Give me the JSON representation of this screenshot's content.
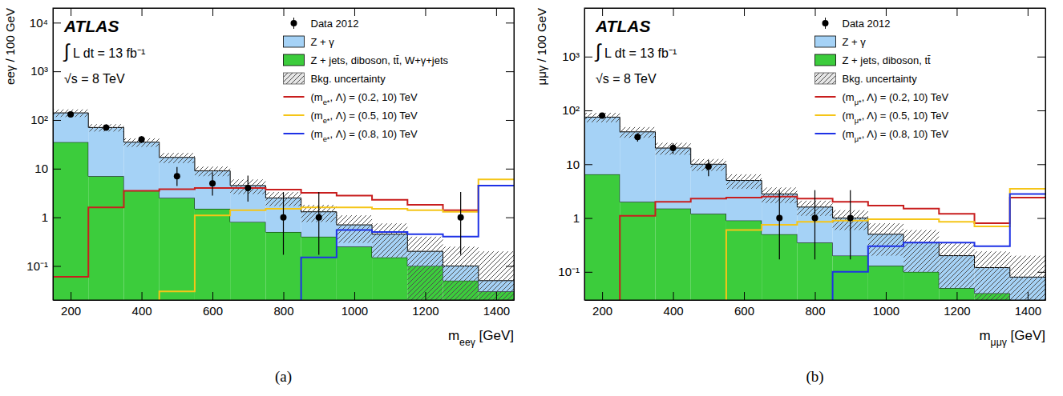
{
  "chart_data": [
    {
      "type": "histogram",
      "title": "(a)",
      "xlabel": "meeγ [GeV]",
      "ylabel": "eeγ / 100 GeV",
      "annotations": [
        "ATLAS",
        "∫ L dt = 13 fb⁻¹",
        "√s = 8 TeV"
      ],
      "bins": [
        150,
        250,
        350,
        450,
        550,
        650,
        750,
        850,
        950,
        1050,
        1150,
        1250,
        1350,
        1450
      ],
      "xlim": [
        150,
        1450
      ],
      "xticks": [
        200,
        400,
        600,
        800,
        1000,
        1200,
        1400
      ],
      "ylim": [
        0.02,
        20000
      ],
      "yticks": [
        {
          "value": 0.1,
          "label": "10⁻¹"
        },
        1,
        10,
        {
          "value": 100,
          "label": "10²"
        },
        {
          "value": 1000,
          "label": "10³"
        },
        {
          "value": 10000,
          "label": "10⁴"
        }
      ],
      "log": "y",
      "stacked": true,
      "legend": "upper right",
      "series": [
        {
          "name": "Data 2012",
          "type": "errorbar",
          "marker": "circle",
          "color": "#000000",
          "values": [
            130,
            70,
            40,
            7,
            5,
            4,
            1,
            1,
            null,
            null,
            null,
            1,
            null
          ],
          "errors_low": [
            11,
            8.4,
            6.3,
            2.6,
            2.2,
            1.9,
            0.83,
            0.83,
            null,
            null,
            null,
            0.83,
            null
          ],
          "errors_high": [
            11,
            8.4,
            6.3,
            3.8,
            3.4,
            3.2,
            2.3,
            2.3,
            null,
            null,
            null,
            2.3,
            null
          ]
        },
        {
          "name": "Z + γ",
          "type": "bar",
          "color": "#a5d2f6",
          "values": [
            105,
            63,
            31.5,
            14.5,
            7.5,
            3.7,
            2.0,
            0.9,
            0.45,
            0.3,
            0.1,
            0.05,
            0.02
          ]
        },
        {
          "name": "Z + jets, diboson, tt̄, W+γ+jets",
          "type": "bar",
          "color": "#3ccc3c",
          "values": [
            35,
            7,
            3.5,
            2.5,
            1.5,
            0.8,
            0.5,
            0.4,
            0.25,
            0.15,
            0.1,
            0.05,
            0.03
          ]
        },
        {
          "name": "Bkg. uncertainty",
          "type": "band",
          "color": "#555555",
          "values": [
            25,
            12,
            7,
            4,
            2,
            1.5,
            0.8,
            0.5,
            0.4,
            0.3,
            0.2,
            0.15,
            0.15
          ]
        },
        {
          "name": "(me*, Λ) = (0.2, 10) TeV",
          "type": "step",
          "color": "#c81e1e",
          "values": [
            0.06,
            1.6,
            3.5,
            3.8,
            4,
            4,
            3.7,
            3.2,
            2.8,
            2.3,
            1.8,
            1.4,
            4.5
          ]
        },
        {
          "name": "(me*, Λ) = (0.5, 10) TeV",
          "type": "step",
          "color": "#f5c518",
          "values": [
            null,
            null,
            null,
            0.03,
            1.1,
            1.4,
            1.5,
            1.6,
            1.6,
            1.5,
            1.4,
            1.3,
            6
          ]
        },
        {
          "name": "(me*, Λ) = (0.8, 10) TeV",
          "type": "step",
          "color": "#1e32e6",
          "values": [
            null,
            null,
            null,
            null,
            null,
            null,
            null,
            0.15,
            0.55,
            0.5,
            0.45,
            0.4,
            4.5
          ]
        }
      ]
    },
    {
      "type": "histogram",
      "title": "(b)",
      "xlabel": "mμμγ [GeV]",
      "ylabel": "μμγ / 100 GeV",
      "annotations": [
        "ATLAS",
        "∫ L dt = 13 fb⁻¹",
        "√s = 8 TeV"
      ],
      "bins": [
        150,
        250,
        350,
        450,
        550,
        650,
        750,
        850,
        950,
        1050,
        1150,
        1250,
        1350,
        1450
      ],
      "xlim": [
        150,
        1450
      ],
      "xticks": [
        200,
        400,
        600,
        800,
        1000,
        1200,
        1400
      ],
      "ylim": [
        0.03,
        8000
      ],
      "yticks": [
        {
          "value": 0.1,
          "label": "10⁻¹"
        },
        1,
        10,
        {
          "value": 100,
          "label": "10²"
        },
        {
          "value": 1000,
          "label": "10³"
        }
      ],
      "log": "y",
      "stacked": true,
      "legend": "upper right",
      "series": [
        {
          "name": "Data 2012",
          "type": "errorbar",
          "marker": "circle",
          "color": "#000000",
          "values": [
            80,
            32,
            20,
            9,
            null,
            1,
            1,
            1,
            null,
            null,
            null,
            null,
            null
          ],
          "errors_low": [
            9,
            5.7,
            4.5,
            3,
            null,
            0.83,
            0.83,
            0.83,
            null,
            null,
            null,
            null,
            null
          ],
          "errors_high": [
            9,
            5.7,
            4.5,
            3,
            null,
            2.3,
            2.3,
            2.3,
            null,
            null,
            null,
            null,
            null
          ]
        },
        {
          "name": "Z + γ",
          "type": "bar",
          "color": "#a5d2f6",
          "values": [
            68.5,
            38,
            18.5,
            8.8,
            4.1,
            2.3,
            1.25,
            0.8,
            0.37,
            0.25,
            0.15,
            0.08,
            0.05
          ]
        },
        {
          "name": "Z + jets, diboson, tt̄",
          "type": "bar",
          "color": "#3ccc3c",
          "values": [
            6.5,
            2.0,
            1.5,
            1.2,
            0.9,
            0.5,
            0.35,
            0.2,
            0.13,
            0.1,
            0.05,
            0.04,
            0.03
          ]
        },
        {
          "name": "Bkg. uncertainty",
          "type": "band",
          "color": "#555555",
          "values": [
            15,
            9,
            5,
            2.5,
            1.5,
            0.9,
            0.5,
            0.4,
            0.3,
            0.25,
            0.15,
            0.12,
            0.12
          ]
        },
        {
          "name": "(mμ*, Λ) = (0.2, 10) TeV",
          "type": "step",
          "color": "#c81e1e",
          "values": [
            null,
            1.1,
            2.0,
            2.3,
            2.4,
            2.5,
            2.3,
            2.0,
            1.7,
            1.5,
            1.2,
            0.8,
            2.4
          ]
        },
        {
          "name": "(mμ*, Λ) = (0.5, 10) TeV",
          "type": "step",
          "color": "#f5c518",
          "values": [
            null,
            null,
            null,
            null,
            0.6,
            0.75,
            0.85,
            0.9,
            0.95,
            0.95,
            0.85,
            0.7,
            3.5
          ]
        },
        {
          "name": "(mμ*, Λ) = (0.8, 10) TeV",
          "type": "step",
          "color": "#1e32e6",
          "values": [
            null,
            null,
            null,
            null,
            null,
            null,
            null,
            0.1,
            0.3,
            0.35,
            0.35,
            0.3,
            2.8
          ]
        }
      ]
    }
  ]
}
